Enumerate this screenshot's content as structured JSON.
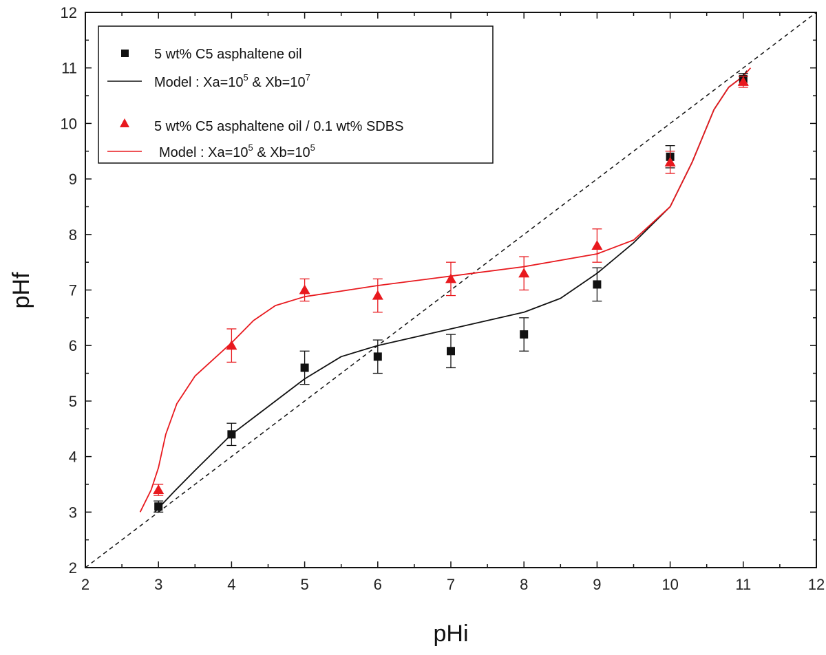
{
  "chart_data": {
    "type": "scatter",
    "xlabel": "pHi",
    "ylabel": "pHf",
    "xlim": [
      2,
      12
    ],
    "ylim": [
      2,
      12
    ],
    "x_ticks": [
      "2",
      "3",
      "4",
      "5",
      "6",
      "7",
      "8",
      "9",
      "10",
      "11",
      "12"
    ],
    "y_ticks": [
      "2",
      "3",
      "4",
      "5",
      "6",
      "7",
      "8",
      "9",
      "10",
      "11",
      "12"
    ],
    "grid": false,
    "legend_position": "top-left",
    "reference_line": {
      "style": "dashed",
      "color": "#111111",
      "points": [
        [
          2,
          2
        ],
        [
          12,
          12
        ]
      ]
    },
    "series": [
      {
        "name": "5 wt% C5 asphaltene oil",
        "marker": "square",
        "color": "#111111",
        "x": [
          3,
          4,
          5,
          6,
          7,
          8,
          9,
          10,
          11
        ],
        "y": [
          3.1,
          4.4,
          5.6,
          5.8,
          5.9,
          6.2,
          7.1,
          9.4,
          10.8
        ],
        "error": [
          0.1,
          0.2,
          0.3,
          0.3,
          0.3,
          0.3,
          0.3,
          0.2,
          0.1
        ]
      },
      {
        "name": "5 wt% C5 asphaltene oil / 0.1 wt% SDBS",
        "marker": "triangle",
        "color": "#e8191e",
        "x": [
          3,
          4,
          5,
          6,
          7,
          8,
          9,
          10,
          11
        ],
        "y": [
          3.4,
          6.0,
          7.0,
          6.9,
          7.2,
          7.3,
          7.8,
          9.3,
          10.75
        ],
        "error": [
          0.1,
          0.3,
          0.2,
          0.3,
          0.3,
          0.3,
          0.3,
          0.2,
          0.1
        ]
      }
    ],
    "models": [
      {
        "legend_prefix": "Model : Xa=10",
        "sup_a": "5",
        "legend_mid": " & Xb=10",
        "sup_b": "7",
        "color": "#111111",
        "x": [
          2.95,
          3.2,
          3.5,
          4.0,
          4.5,
          5.0,
          5.5,
          6.0,
          6.5,
          7.0,
          7.5,
          8.0,
          8.5,
          9.0,
          9.5,
          10.0,
          10.3,
          10.6,
          10.8,
          11.0,
          11.05
        ],
        "y": [
          3.0,
          3.35,
          3.75,
          4.4,
          4.9,
          5.4,
          5.8,
          6.0,
          6.15,
          6.3,
          6.45,
          6.6,
          6.85,
          7.3,
          7.85,
          8.5,
          9.3,
          10.25,
          10.65,
          10.85,
          10.95
        ]
      },
      {
        "legend_prefix": "Model : Xa=10",
        "sup_a": "5",
        "legend_mid": " & Xb=10",
        "sup_b": "5",
        "color": "#e8191e",
        "x": [
          2.75,
          2.9,
          3.0,
          3.1,
          3.25,
          3.5,
          4.0,
          4.3,
          4.6,
          5.0,
          5.5,
          6.0,
          7.0,
          8.0,
          9.0,
          9.5,
          10.0,
          10.3,
          10.6,
          10.8,
          11.0,
          11.1
        ],
        "y": [
          3.0,
          3.4,
          3.8,
          4.4,
          4.95,
          5.45,
          6.05,
          6.45,
          6.72,
          6.88,
          6.98,
          7.08,
          7.25,
          7.42,
          7.65,
          7.9,
          8.5,
          9.3,
          10.25,
          10.65,
          10.85,
          11.0
        ]
      }
    ]
  }
}
